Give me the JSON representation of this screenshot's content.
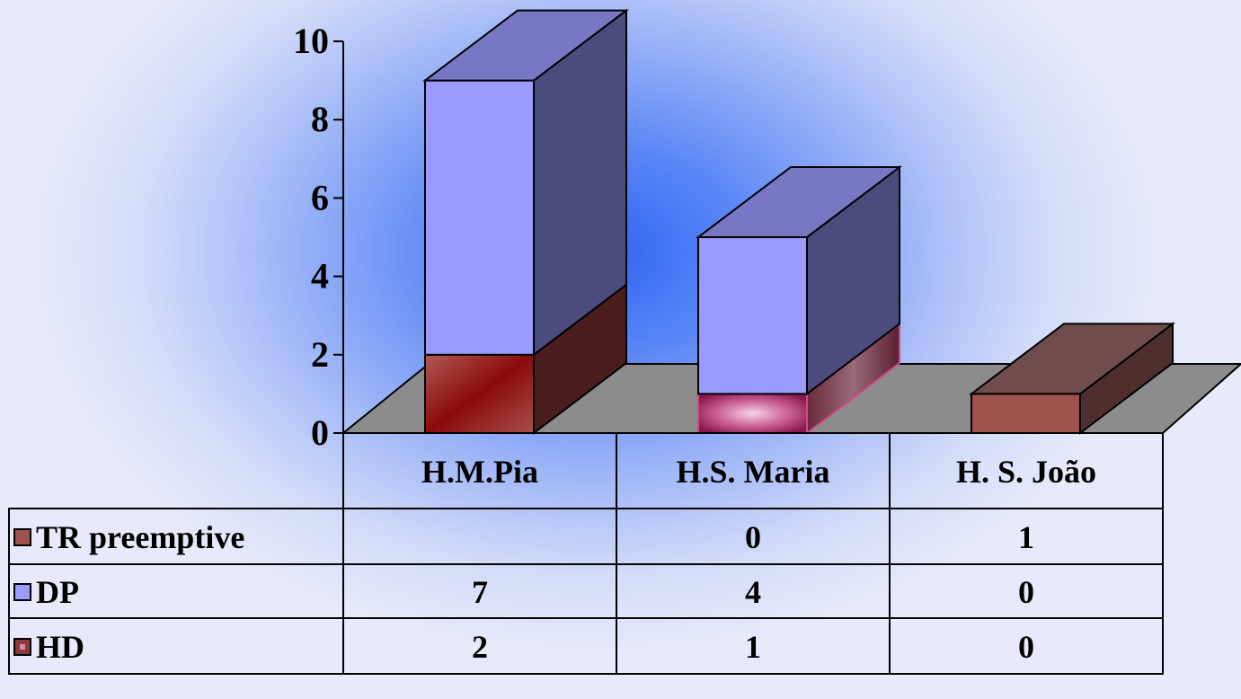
{
  "chart_data": {
    "type": "bar",
    "stacked": true,
    "three_d": true,
    "categories": [
      "H.M.Pia",
      "H.S. Maria",
      "H. S. João"
    ],
    "series": [
      {
        "name": "HD",
        "values": [
          2,
          1,
          0
        ],
        "color": "#8f3a3a"
      },
      {
        "name": "DP",
        "values": [
          7,
          4,
          0
        ],
        "color": "#9b9bff"
      },
      {
        "name": "TR preemptive",
        "values": [
          null,
          0,
          1
        ],
        "color": "#a0524e"
      }
    ],
    "table_rows": [
      {
        "name": "TR preemptive",
        "cells": [
          "",
          "0",
          "1"
        ]
      },
      {
        "name": "DP",
        "cells": [
          "7",
          "4",
          "0"
        ]
      },
      {
        "name": "HD",
        "cells": [
          "2",
          "1",
          "0"
        ]
      }
    ],
    "yticks": [
      "0",
      "2",
      "4",
      "6",
      "8",
      "10"
    ],
    "ylim": [
      0,
      10
    ],
    "grid": false,
    "legend": "data-table"
  }
}
